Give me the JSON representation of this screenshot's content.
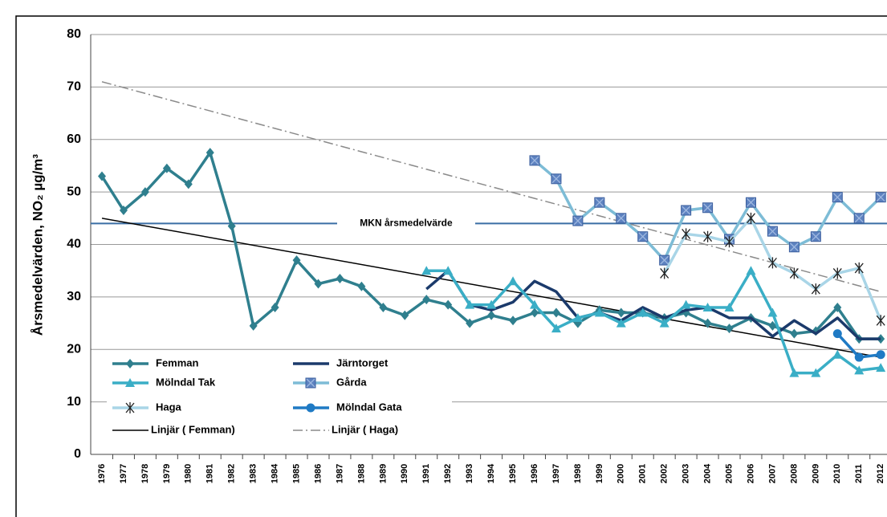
{
  "chart_data": {
    "type": "line",
    "ylabel": "Årsmedelvärden, NO₂ µg/m³",
    "categories": [
      "1976",
      "1977",
      "1978",
      "1979",
      "1980",
      "1981",
      "1982",
      "1983",
      "1984",
      "1985",
      "1986",
      "1987",
      "1988",
      "1989",
      "1990",
      "1991",
      "1992",
      "1993",
      "1994",
      "1995",
      "1996",
      "1997",
      "1998",
      "1999",
      "2000",
      "2001",
      "2002",
      "2003",
      "2004",
      "2005",
      "2006",
      "2007",
      "2008",
      "2009",
      "2010",
      "2011",
      "2012"
    ],
    "ylim": [
      0,
      80
    ],
    "yticks": [
      0,
      10,
      20,
      30,
      40,
      50,
      60,
      70,
      80
    ],
    "grid": true,
    "legend": "lower left",
    "series": [
      {
        "name": "Femman",
        "color": "#2f7f8e",
        "marker": "diamond",
        "values": [
          53,
          46.5,
          50,
          54.5,
          51.5,
          57.5,
          43.5,
          24.5,
          28,
          37,
          32.5,
          33.5,
          32,
          28,
          26.5,
          29.5,
          28.5,
          25,
          26.5,
          25.5,
          27,
          27,
          25,
          27.5,
          27,
          27,
          26,
          27,
          25,
          24,
          26,
          24.5,
          23,
          23.5,
          28,
          22,
          22
        ]
      },
      {
        "name": "Järntorget",
        "color": "#1b3a6b",
        "marker": "none",
        "values": [
          null,
          null,
          null,
          null,
          null,
          null,
          null,
          null,
          null,
          null,
          null,
          null,
          null,
          null,
          null,
          31.5,
          35,
          28.5,
          27.5,
          29,
          33,
          31,
          26,
          27,
          25.5,
          28,
          26,
          27.5,
          28,
          26,
          26,
          22.5,
          25.5,
          23,
          26,
          22,
          22
        ]
      },
      {
        "name": "Mölndal Tak",
        "color": "#3aaec6",
        "marker": "triangle",
        "values": [
          null,
          null,
          null,
          null,
          null,
          null,
          null,
          null,
          null,
          null,
          null,
          null,
          null,
          null,
          null,
          35,
          35,
          28.5,
          28.5,
          33,
          28.5,
          24,
          26,
          27,
          25,
          27,
          25,
          28.5,
          28,
          28,
          35,
          27,
          15.5,
          15.5,
          19,
          16,
          16.5
        ]
      },
      {
        "name": "Gårda",
        "color": "#7dbcd6",
        "marker": "square",
        "marker_color": "#5d82c0",
        "values": [
          null,
          null,
          null,
          null,
          null,
          null,
          null,
          null,
          null,
          null,
          null,
          null,
          null,
          null,
          null,
          null,
          null,
          null,
          null,
          null,
          56,
          52.5,
          44.5,
          48,
          45,
          41.5,
          37,
          46.5,
          47,
          41,
          48,
          42.5,
          39.5,
          41.5,
          49,
          45,
          49
        ]
      },
      {
        "name": "Haga",
        "color": "#a9d5e7",
        "marker": "x",
        "values": [
          null,
          null,
          null,
          null,
          null,
          null,
          null,
          null,
          null,
          null,
          null,
          null,
          null,
          null,
          null,
          null,
          null,
          null,
          null,
          null,
          null,
          null,
          null,
          null,
          null,
          null,
          34.5,
          42,
          41.5,
          40.5,
          45,
          36.5,
          34.5,
          31.5,
          34.5,
          35.5,
          25.5
        ]
      },
      {
        "name": "Mölndal Gata",
        "color": "#1f7ac4",
        "marker": "circle",
        "values": [
          null,
          null,
          null,
          null,
          null,
          null,
          null,
          null,
          null,
          null,
          null,
          null,
          null,
          null,
          null,
          null,
          null,
          null,
          null,
          null,
          null,
          null,
          null,
          null,
          null,
          null,
          null,
          null,
          null,
          null,
          null,
          null,
          null,
          null,
          23,
          18.5,
          19
        ]
      }
    ],
    "trendlines": [
      {
        "name": "Linjär ( Femman)",
        "color": "#000000",
        "dash": "solid",
        "values": [
          45,
          18.5
        ]
      },
      {
        "name": "Linjär ( Haga)",
        "color": "#8a8a8a",
        "dash": "dashdot",
        "values": [
          71,
          31
        ]
      }
    ],
    "reference_line": {
      "label": "MKN årsmedelvärde",
      "value": 44,
      "color": "#3a6ea5"
    }
  }
}
